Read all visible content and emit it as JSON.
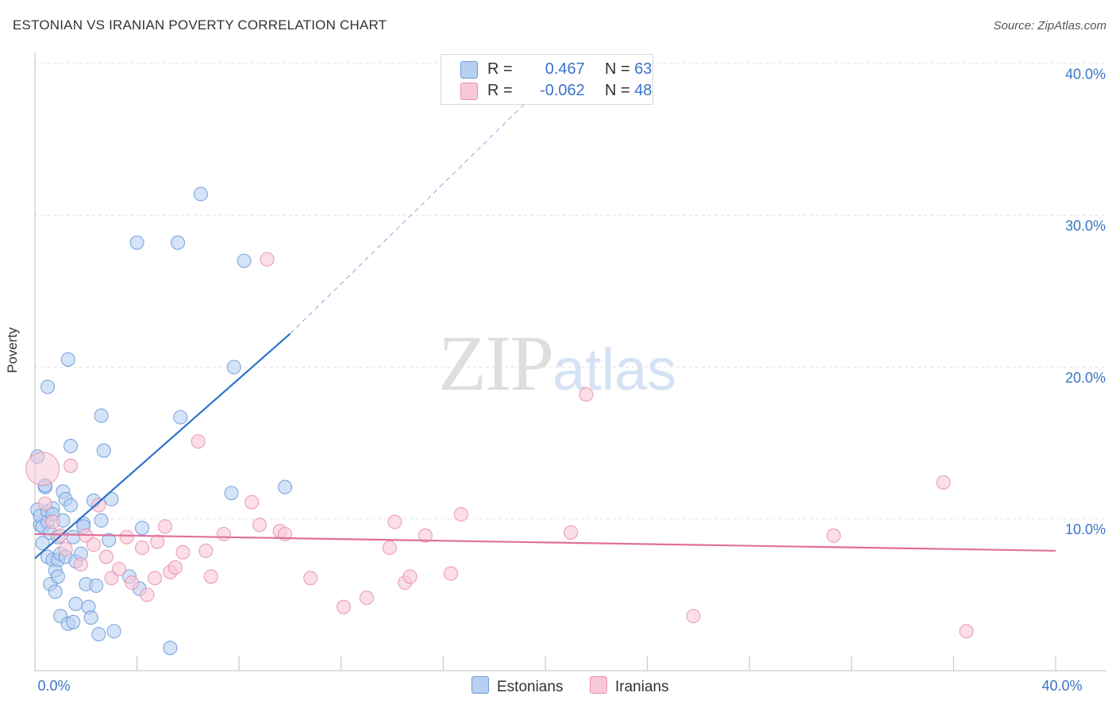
{
  "header": {
    "title": "ESTONIAN VS IRANIAN POVERTY CORRELATION CHART",
    "source": "Source: ZipAtlas.com"
  },
  "watermark": {
    "zip": "ZIP",
    "atlas": "atlas"
  },
  "legend": {
    "estonians": {
      "r_label": "R =",
      "r_value": "0.467",
      "n_label": "N =",
      "n_value": "63"
    },
    "iranians": {
      "r_label": "R =",
      "r_value": "-0.062",
      "n_label": "N =",
      "n_value": "48"
    }
  },
  "bottom_legend": {
    "estonians": "Estonians",
    "iranians": "Iranians"
  },
  "colors": {
    "estonian_fill": "#b7d0f2",
    "estonian_stroke": "#6b9ad8",
    "estonian_line": "#2e72cc",
    "iranian_fill": "#f8c8d6",
    "iranian_stroke": "#e890ae",
    "iranian_line": "#e0709a",
    "tick_label": "#3a74c7",
    "grid": "#e3e3e3"
  },
  "chart_data": {
    "type": "scatter",
    "title": "ESTONIAN VS IRANIAN POVERTY CORRELATION CHART",
    "xlabel": "",
    "ylabel": "Poverty",
    "xlim": [
      0,
      40
    ],
    "ylim": [
      0,
      40
    ],
    "x_tick_labels": [
      "0.0%",
      "40.0%"
    ],
    "y_ticks": [
      10,
      20,
      30,
      40
    ],
    "y_tick_labels": [
      "10.0%",
      "20.0%",
      "30.0%",
      "40.0%"
    ],
    "grid": true,
    "legend_position": "top-center",
    "series": [
      {
        "name": "Estonians",
        "r": 0.467,
        "n": 63,
        "trend": {
          "x0": 0,
          "y0": 7.4,
          "x1": 10.0,
          "y1": 22.2,
          "dash_x1": 20.5,
          "dash_y1": 39.5
        },
        "points": [
          [
            0.1,
            14.1
          ],
          [
            0.1,
            10.6
          ],
          [
            0.2,
            9.6
          ],
          [
            0.2,
            10.2
          ],
          [
            0.3,
            9.5
          ],
          [
            0.3,
            8.4
          ],
          [
            0.4,
            12.1
          ],
          [
            0.4,
            12.2
          ],
          [
            0.5,
            10.5
          ],
          [
            0.5,
            9.8
          ],
          [
            0.5,
            7.5
          ],
          [
            0.5,
            18.7
          ],
          [
            0.6,
            9.1
          ],
          [
            0.6,
            5.7
          ],
          [
            0.7,
            10.7
          ],
          [
            0.7,
            10.3
          ],
          [
            0.7,
            7.3
          ],
          [
            0.8,
            6.6
          ],
          [
            0.8,
            5.2
          ],
          [
            0.9,
            7.3
          ],
          [
            0.9,
            8.8
          ],
          [
            0.9,
            6.2
          ],
          [
            1.0,
            7.7
          ],
          [
            1.0,
            3.6
          ],
          [
            1.1,
            9.9
          ],
          [
            1.1,
            11.8
          ],
          [
            1.2,
            11.3
          ],
          [
            1.2,
            7.5
          ],
          [
            1.3,
            3.1
          ],
          [
            1.3,
            20.5
          ],
          [
            1.4,
            10.9
          ],
          [
            1.4,
            14.8
          ],
          [
            1.5,
            8.8
          ],
          [
            1.5,
            3.2
          ],
          [
            1.6,
            7.2
          ],
          [
            1.6,
            4.4
          ],
          [
            1.8,
            7.7
          ],
          [
            1.9,
            9.7
          ],
          [
            1.9,
            9.5
          ],
          [
            2.0,
            5.7
          ],
          [
            2.1,
            4.2
          ],
          [
            2.2,
            3.5
          ],
          [
            2.3,
            11.2
          ],
          [
            2.4,
            5.6
          ],
          [
            2.5,
            2.4
          ],
          [
            2.6,
            9.9
          ],
          [
            2.6,
            16.8
          ],
          [
            2.7,
            14.5
          ],
          [
            2.9,
            8.6
          ],
          [
            3.0,
            11.3
          ],
          [
            3.1,
            2.6
          ],
          [
            3.7,
            6.2
          ],
          [
            4.0,
            28.2
          ],
          [
            4.1,
            5.4
          ],
          [
            4.2,
            9.4
          ],
          [
            5.3,
            1.5
          ],
          [
            5.6,
            28.2
          ],
          [
            5.7,
            16.7
          ],
          [
            6.5,
            31.4
          ],
          [
            7.7,
            11.7
          ],
          [
            7.8,
            20.0
          ],
          [
            8.2,
            27.0
          ],
          [
            9.8,
            12.1
          ]
        ]
      },
      {
        "name": "Iranians",
        "r": -0.062,
        "n": 48,
        "trend": {
          "x0": 0,
          "y0": 9.0,
          "x1": 40,
          "y1": 7.9
        },
        "points": [
          [
            0.3,
            13.3
          ],
          [
            0.4,
            11.0
          ],
          [
            0.7,
            9.8
          ],
          [
            1.0,
            8.9
          ],
          [
            1.2,
            8.0
          ],
          [
            1.4,
            13.5
          ],
          [
            1.8,
            7.0
          ],
          [
            2.0,
            8.9
          ],
          [
            2.3,
            8.3
          ],
          [
            2.5,
            10.9
          ],
          [
            2.8,
            7.5
          ],
          [
            3.0,
            6.1
          ],
          [
            3.3,
            6.7
          ],
          [
            3.6,
            8.8
          ],
          [
            3.8,
            5.8
          ],
          [
            4.2,
            8.1
          ],
          [
            4.4,
            5.0
          ],
          [
            4.7,
            6.1
          ],
          [
            4.8,
            8.5
          ],
          [
            5.1,
            9.5
          ],
          [
            5.3,
            6.5
          ],
          [
            5.5,
            6.8
          ],
          [
            5.8,
            7.8
          ],
          [
            6.4,
            15.1
          ],
          [
            6.7,
            7.9
          ],
          [
            6.9,
            6.2
          ],
          [
            7.4,
            9.0
          ],
          [
            8.5,
            11.1
          ],
          [
            8.8,
            9.6
          ],
          [
            9.1,
            27.1
          ],
          [
            9.6,
            9.2
          ],
          [
            9.8,
            9.0
          ],
          [
            10.8,
            6.1
          ],
          [
            12.1,
            4.2
          ],
          [
            13.0,
            4.8
          ],
          [
            13.9,
            8.1
          ],
          [
            14.1,
            9.8
          ],
          [
            14.5,
            5.8
          ],
          [
            14.7,
            6.2
          ],
          [
            15.3,
            8.9
          ],
          [
            16.3,
            6.4
          ],
          [
            16.7,
            10.3
          ],
          [
            21.0,
            9.1
          ],
          [
            21.6,
            18.2
          ],
          [
            25.8,
            3.6
          ],
          [
            31.3,
            8.9
          ],
          [
            35.6,
            12.4
          ],
          [
            36.5,
            2.6
          ]
        ]
      }
    ]
  }
}
